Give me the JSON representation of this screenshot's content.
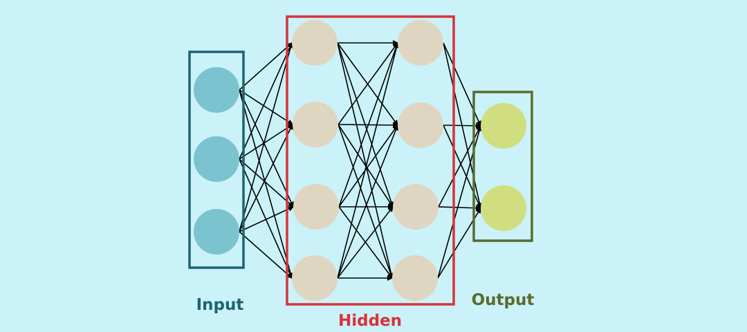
{
  "layers": {
    "input": {
      "label": "Input",
      "node_count": 3,
      "node_color": "#7bc3cf",
      "box_color": "#1d6370",
      "label_color": "#1d6370"
    },
    "hidden": {
      "label": "Hidden",
      "layer_count": 2,
      "nodes_per_layer": 4,
      "node_color": "#dfd6c2",
      "box_color": "#d8323a",
      "label_color": "#d8323a"
    },
    "output": {
      "label": "Output",
      "node_count": 2,
      "node_color": "#d0de7f",
      "box_color": "#5b6a2e",
      "label_color": "#5b6a2e"
    }
  },
  "connections": {
    "type": "fully-connected",
    "color": "#000000"
  },
  "background_color": "#caf2f8"
}
